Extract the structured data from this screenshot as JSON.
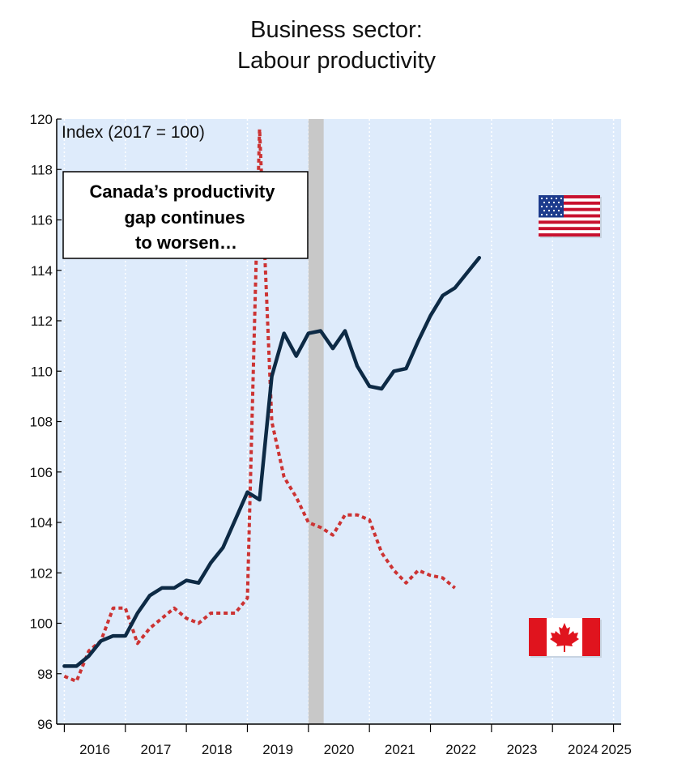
{
  "chart_data": {
    "type": "line",
    "title_lines": [
      "Business sector:",
      "Labour productivity"
    ],
    "unit_label": "Index (2017 = 100)",
    "annotation_lines": [
      "Canada’s productivity",
      "gap continues",
      "to worsen…"
    ],
    "ylim": [
      96,
      120
    ],
    "yticks": [
      96,
      98,
      100,
      102,
      104,
      106,
      108,
      110,
      112,
      114,
      116,
      118,
      120
    ],
    "xlim": [
      2015.875,
      2025.125
    ],
    "xtick_labels": [
      "2016",
      "2017",
      "2018",
      "2019",
      "2020",
      "2021",
      "2022",
      "2023",
      "2024",
      "2025"
    ],
    "recession_shading": {
      "start": 2020.0,
      "end": 2020.25
    },
    "series": [
      {
        "name": "United States",
        "flag": "us-flag",
        "color": "#0d2a45",
        "style": "solid",
        "x": [
          2016.0,
          2016.2,
          2016.4,
          2016.6,
          2016.8,
          2017.0,
          2017.2,
          2017.4,
          2017.6,
          2017.8,
          2018.0,
          2018.2,
          2018.4,
          2018.6,
          2018.8,
          2019.0,
          2019.2,
          2019.4,
          2019.6,
          2019.8,
          2020.0,
          2020.2,
          2020.4,
          2020.6,
          2020.8,
          2021.0,
          2021.2,
          2021.4,
          2021.6,
          2021.8,
          2022.0,
          2022.2,
          2022.4,
          2022.6,
          2022.8,
          2023.0,
          2023.2,
          2023.4,
          2023.6,
          2023.8,
          2024.0,
          2024.2
        ],
        "values": [
          98.3,
          98.3,
          98.7,
          99.3,
          99.5,
          99.5,
          100.4,
          101.1,
          101.4,
          101.4,
          101.7,
          101.6,
          102.4,
          103.0,
          104.1,
          105.2,
          104.9,
          109.8,
          111.5,
          110.6,
          111.5,
          111.6,
          110.9,
          111.6,
          110.2,
          109.4,
          109.3,
          110.0,
          110.1,
          111.2,
          112.2,
          113.0,
          113.3,
          113.9,
          114.5,
          null,
          null,
          null,
          null,
          null,
          null,
          null
        ]
      },
      {
        "name": "Canada",
        "flag": "canada-flag",
        "color": "#cc3333",
        "style": "dotted",
        "x": [
          2016.0,
          2016.2,
          2016.4,
          2016.6,
          2016.8,
          2017.0,
          2017.2,
          2017.4,
          2017.6,
          2017.8,
          2018.0,
          2018.2,
          2018.4,
          2018.6,
          2018.8,
          2019.0,
          2019.2,
          2019.4,
          2019.6,
          2019.8,
          2020.0,
          2020.2,
          2020.4,
          2020.6,
          2020.8,
          2021.0,
          2021.2,
          2021.4,
          2021.6,
          2021.8,
          2022.0,
          2022.2,
          2022.4,
          2022.6,
          2022.8,
          2023.0,
          2023.2,
          2023.4,
          2023.6,
          2023.8,
          2024.0,
          2024.2
        ],
        "values": [
          97.9,
          97.7,
          98.9,
          99.3,
          100.6,
          100.6,
          99.2,
          99.8,
          100.2,
          100.6,
          100.2,
          100.0,
          100.4,
          100.4,
          100.4,
          101.0,
          119.6,
          108.0,
          105.8,
          105.0,
          104.0,
          103.8,
          103.5,
          104.3,
          104.3,
          104.1,
          102.8,
          102.1,
          101.6,
          102.1,
          101.9,
          101.8,
          101.4,
          null,
          null,
          null,
          null,
          null,
          null,
          null,
          null,
          null
        ]
      }
    ]
  }
}
